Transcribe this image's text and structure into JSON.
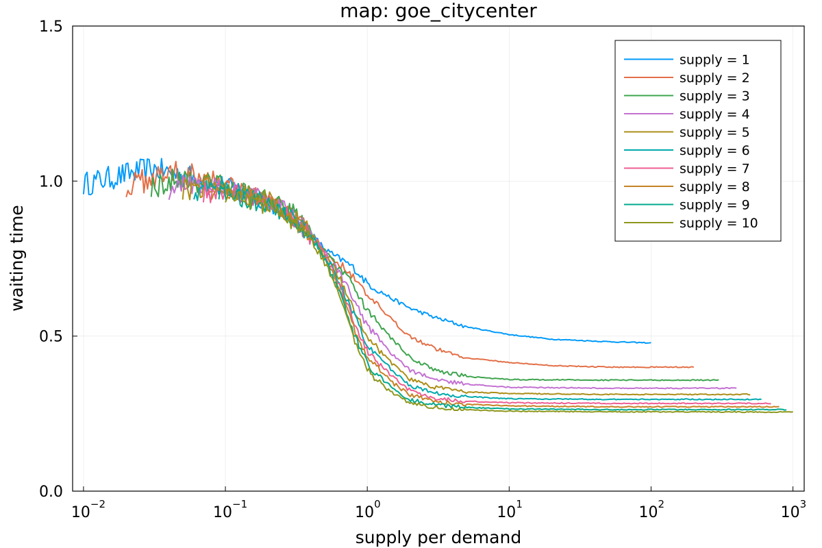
{
  "chart_data": {
    "type": "line",
    "title": "map: goe_citycenter",
    "xlabel": "supply per demand",
    "ylabel": "waiting time",
    "xscale": "log",
    "xlim": [
      0.00838,
      1200
    ],
    "ylim": [
      0.0,
      1.5
    ],
    "grid": true,
    "legend_position": "top-right",
    "x_ticks": [
      {
        "value": 0.01,
        "base": "10",
        "exp": "−2"
      },
      {
        "value": 0.1,
        "base": "10",
        "exp": "−1"
      },
      {
        "value": 1,
        "base": "10",
        "exp": "0"
      },
      {
        "value": 10,
        "base": "10",
        "exp": "1"
      },
      {
        "value": 100,
        "base": "10",
        "exp": "2"
      },
      {
        "value": 1000,
        "base": "10",
        "exp": "3"
      }
    ],
    "y_ticks": [
      {
        "value": 0.0,
        "label": "0.0"
      },
      {
        "value": 0.5,
        "label": "0.5"
      },
      {
        "value": 1.0,
        "label": "1.0"
      },
      {
        "value": 1.5,
        "label": "1.5"
      }
    ],
    "series": [
      {
        "name": "supply = 1",
        "color": "#009AFA",
        "x_min": 0.01,
        "x_max": 100,
        "points": [
          [
            0.01,
            0.99
          ],
          [
            0.03,
            1.04
          ],
          [
            0.06,
            1.01
          ],
          [
            0.1,
            0.99
          ],
          [
            0.2,
            0.93
          ],
          [
            0.3,
            0.88
          ],
          [
            0.4,
            0.83
          ],
          [
            0.5,
            0.78
          ],
          [
            0.6,
            0.755
          ],
          [
            0.7,
            0.74
          ],
          [
            0.8,
            0.72
          ],
          [
            1.0,
            0.67
          ],
          [
            1.5,
            0.62
          ],
          [
            2,
            0.59
          ],
          [
            3,
            0.56
          ],
          [
            5,
            0.53
          ],
          [
            10,
            0.505
          ],
          [
            20,
            0.49
          ],
          [
            50,
            0.482
          ],
          [
            100,
            0.478
          ]
        ]
      },
      {
        "name": "supply = 2",
        "color": "#E36F47",
        "x_min": 0.02,
        "x_max": 200,
        "points": [
          [
            0.02,
            0.98
          ],
          [
            0.04,
            1.03
          ],
          [
            0.07,
            1.02
          ],
          [
            0.1,
            1.0
          ],
          [
            0.2,
            0.94
          ],
          [
            0.3,
            0.89
          ],
          [
            0.4,
            0.83
          ],
          [
            0.5,
            0.77
          ],
          [
            0.6,
            0.74
          ],
          [
            0.7,
            0.72
          ],
          [
            0.8,
            0.69
          ],
          [
            1.0,
            0.63
          ],
          [
            1.5,
            0.55
          ],
          [
            2,
            0.5
          ],
          [
            3,
            0.46
          ],
          [
            5,
            0.43
          ],
          [
            10,
            0.415
          ],
          [
            20,
            0.405
          ],
          [
            50,
            0.4
          ],
          [
            200,
            0.4
          ]
        ]
      },
      {
        "name": "supply = 3",
        "color": "#3EA44E",
        "x_min": 0.03,
        "x_max": 300,
        "points": [
          [
            0.03,
            0.98
          ],
          [
            0.05,
            1.01
          ],
          [
            0.1,
            0.99
          ],
          [
            0.2,
            0.94
          ],
          [
            0.3,
            0.9
          ],
          [
            0.4,
            0.84
          ],
          [
            0.5,
            0.77
          ],
          [
            0.6,
            0.73
          ],
          [
            0.7,
            0.7
          ],
          [
            0.8,
            0.66
          ],
          [
            1.0,
            0.58
          ],
          [
            1.5,
            0.49
          ],
          [
            2,
            0.43
          ],
          [
            3,
            0.39
          ],
          [
            5,
            0.37
          ],
          [
            10,
            0.36
          ],
          [
            50,
            0.358
          ],
          [
            300,
            0.358
          ]
        ]
      },
      {
        "name": "supply = 4",
        "color": "#C371D2",
        "x_min": 0.04,
        "x_max": 400,
        "points": [
          [
            0.04,
            0.97
          ],
          [
            0.07,
            1.0
          ],
          [
            0.1,
            0.98
          ],
          [
            0.2,
            0.94
          ],
          [
            0.3,
            0.89
          ],
          [
            0.4,
            0.83
          ],
          [
            0.5,
            0.77
          ],
          [
            0.6,
            0.72
          ],
          [
            0.7,
            0.67
          ],
          [
            0.8,
            0.62
          ],
          [
            1.0,
            0.53
          ],
          [
            1.5,
            0.44
          ],
          [
            2,
            0.39
          ],
          [
            3,
            0.36
          ],
          [
            5,
            0.345
          ],
          [
            10,
            0.335
          ],
          [
            50,
            0.332
          ],
          [
            400,
            0.332
          ]
        ]
      },
      {
        "name": "supply = 5",
        "color": "#AC8E18",
        "x_min": 0.05,
        "x_max": 500,
        "points": [
          [
            0.05,
            0.97
          ],
          [
            0.08,
            0.99
          ],
          [
            0.1,
            0.98
          ],
          [
            0.2,
            0.94
          ],
          [
            0.3,
            0.89
          ],
          [
            0.4,
            0.83
          ],
          [
            0.5,
            0.76
          ],
          [
            0.6,
            0.71
          ],
          [
            0.7,
            0.65
          ],
          [
            0.8,
            0.59
          ],
          [
            1.0,
            0.5
          ],
          [
            1.5,
            0.41
          ],
          [
            2,
            0.36
          ],
          [
            3,
            0.335
          ],
          [
            5,
            0.32
          ],
          [
            10,
            0.315
          ],
          [
            50,
            0.312
          ],
          [
            500,
            0.312
          ]
        ]
      },
      {
        "name": "supply = 6",
        "color": "#00A9AD",
        "x_min": 0.06,
        "x_max": 600,
        "points": [
          [
            0.06,
            0.97
          ],
          [
            0.1,
            0.98
          ],
          [
            0.2,
            0.93
          ],
          [
            0.3,
            0.88
          ],
          [
            0.4,
            0.82
          ],
          [
            0.5,
            0.76
          ],
          [
            0.6,
            0.7
          ],
          [
            0.7,
            0.63
          ],
          [
            0.8,
            0.57
          ],
          [
            1.0,
            0.47
          ],
          [
            1.5,
            0.39
          ],
          [
            2,
            0.34
          ],
          [
            3,
            0.315
          ],
          [
            5,
            0.305
          ],
          [
            10,
            0.298
          ],
          [
            50,
            0.296
          ],
          [
            600,
            0.296
          ]
        ]
      },
      {
        "name": "supply = 7",
        "color": "#ED5E93",
        "x_min": 0.07,
        "x_max": 700,
        "points": [
          [
            0.07,
            0.96
          ],
          [
            0.1,
            0.97
          ],
          [
            0.2,
            0.93
          ],
          [
            0.3,
            0.88
          ],
          [
            0.4,
            0.82
          ],
          [
            0.5,
            0.76
          ],
          [
            0.6,
            0.69
          ],
          [
            0.7,
            0.62
          ],
          [
            0.8,
            0.55
          ],
          [
            1.0,
            0.45
          ],
          [
            1.5,
            0.37
          ],
          [
            2,
            0.325
          ],
          [
            3,
            0.3
          ],
          [
            5,
            0.29
          ],
          [
            10,
            0.285
          ],
          [
            50,
            0.283
          ],
          [
            700,
            0.283
          ]
        ]
      },
      {
        "name": "supply = 8",
        "color": "#C68225",
        "x_min": 0.08,
        "x_max": 800,
        "points": [
          [
            0.08,
            0.96
          ],
          [
            0.1,
            0.97
          ],
          [
            0.2,
            0.93
          ],
          [
            0.3,
            0.88
          ],
          [
            0.4,
            0.82
          ],
          [
            0.5,
            0.75
          ],
          [
            0.6,
            0.68
          ],
          [
            0.7,
            0.6
          ],
          [
            0.8,
            0.53
          ],
          [
            1.0,
            0.43
          ],
          [
            1.5,
            0.35
          ],
          [
            2,
            0.31
          ],
          [
            3,
            0.29
          ],
          [
            5,
            0.28
          ],
          [
            10,
            0.275
          ],
          [
            50,
            0.272
          ],
          [
            800,
            0.272
          ]
        ]
      },
      {
        "name": "supply = 9",
        "color": "#00A98D",
        "x_min": 0.09,
        "x_max": 900,
        "points": [
          [
            0.09,
            0.96
          ],
          [
            0.1,
            0.96
          ],
          [
            0.2,
            0.92
          ],
          [
            0.3,
            0.87
          ],
          [
            0.4,
            0.82
          ],
          [
            0.5,
            0.75
          ],
          [
            0.6,
            0.67
          ],
          [
            0.7,
            0.59
          ],
          [
            0.8,
            0.51
          ],
          [
            1.0,
            0.41
          ],
          [
            1.5,
            0.33
          ],
          [
            2,
            0.295
          ],
          [
            3,
            0.278
          ],
          [
            5,
            0.27
          ],
          [
            10,
            0.265
          ],
          [
            50,
            0.263
          ],
          [
            900,
            0.263
          ]
        ]
      },
      {
        "name": "supply = 10",
        "color": "#8E971D",
        "x_min": 0.1,
        "x_max": 1000,
        "points": [
          [
            0.1,
            0.95
          ],
          [
            0.2,
            0.92
          ],
          [
            0.3,
            0.87
          ],
          [
            0.4,
            0.81
          ],
          [
            0.5,
            0.74
          ],
          [
            0.6,
            0.66
          ],
          [
            0.7,
            0.57
          ],
          [
            0.8,
            0.49
          ],
          [
            1.0,
            0.39
          ],
          [
            1.5,
            0.315
          ],
          [
            2,
            0.285
          ],
          [
            3,
            0.27
          ],
          [
            5,
            0.262
          ],
          [
            10,
            0.258
          ],
          [
            50,
            0.256
          ],
          [
            1000,
            0.255
          ]
        ]
      }
    ]
  }
}
